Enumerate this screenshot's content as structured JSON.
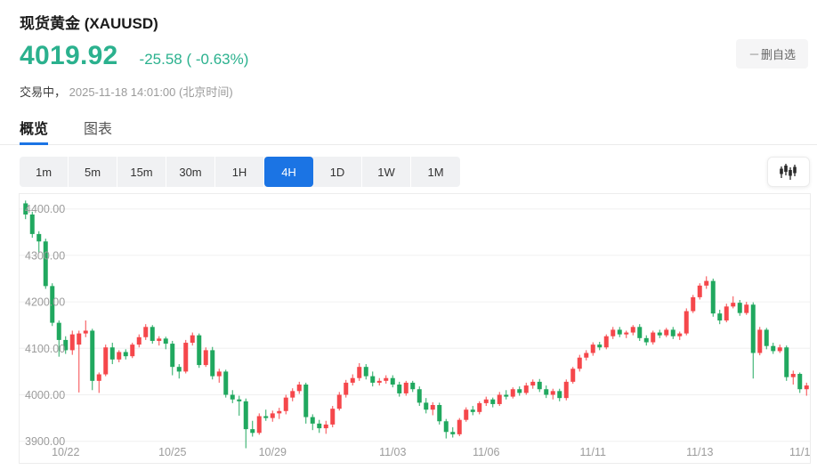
{
  "header": {
    "title": "现货黄金  (XAUUSD)",
    "price": "4019.92",
    "change": "-25.58 ( -0.63%)",
    "status_label": "交易中，",
    "timestamp": "2025-11-18 14:01:00",
    "timezone": "(北京时间)",
    "delete_button": {
      "icon": "－",
      "label": "删自选"
    },
    "price_color": "#2bb18e"
  },
  "tabs": [
    {
      "label": "概览",
      "active": true
    },
    {
      "label": "图表",
      "active": false
    }
  ],
  "toolbar": {
    "timeframes": [
      "1m",
      "5m",
      "15m",
      "30m",
      "1H",
      "4H",
      "1D",
      "1W",
      "1M"
    ],
    "active_timeframe": "4H",
    "chart_style_icon": "candlestick-icon",
    "active_color": "#1b74e4"
  },
  "chart_data": {
    "type": "candlestick",
    "symbol": "XAUUSD",
    "interval": "4H",
    "grid": true,
    "y_ticks": [
      {
        "label": "4400.00",
        "value": 4400
      },
      {
        "label": "4300.00",
        "value": 4300
      },
      {
        "label": "4200.00",
        "value": 4200
      },
      {
        "label": "4100.00",
        "value": 4100
      },
      {
        "label": "4000.00",
        "value": 4000
      },
      {
        "label": "3900.00",
        "value": 3900
      }
    ],
    "x_ticks": [
      {
        "label": "10/22",
        "index": 6
      },
      {
        "label": "10/25",
        "index": 22
      },
      {
        "label": "10/29",
        "index": 37
      },
      {
        "label": "11/03",
        "index": 55
      },
      {
        "label": "11/06",
        "index": 69
      },
      {
        "label": "11/11",
        "index": 85
      },
      {
        "label": "11/13",
        "index": 101
      },
      {
        "label": "11/1",
        "index": 116
      }
    ],
    "ylim": [
      3880,
      4432
    ],
    "colors": {
      "up": "#f5474b",
      "down": "#20a85f",
      "grid": "#f0f0f0",
      "axis_text": "#9c9c9c"
    },
    "candles_format": [
      "open",
      "high",
      "low",
      "close"
    ],
    "candles": [
      [
        4412,
        4418,
        4378,
        4388
      ],
      [
        4388,
        4394,
        4338,
        4346
      ],
      [
        4346,
        4352,
        4305,
        4330
      ],
      [
        4330,
        4336,
        4228,
        4234
      ],
      [
        4234,
        4240,
        4148,
        4155
      ],
      [
        4155,
        4160,
        4082,
        4118
      ],
      [
        4118,
        4126,
        4088,
        4096
      ],
      [
        4096,
        4138,
        4086,
        4130
      ],
      [
        4108,
        4138,
        4005,
        4132
      ],
      [
        4132,
        4160,
        4124,
        4138
      ],
      [
        4138,
        4142,
        4010,
        4030
      ],
      [
        4030,
        4048,
        4004,
        4044
      ],
      [
        4044,
        4108,
        4040,
        4102
      ],
      [
        4102,
        4112,
        4066,
        4076
      ],
      [
        4076,
        4096,
        4070,
        4092
      ],
      [
        4092,
        4098,
        4076,
        4083
      ],
      [
        4083,
        4112,
        4079,
        4108
      ],
      [
        4108,
        4130,
        4102,
        4124
      ],
      [
        4124,
        4152,
        4118,
        4146
      ],
      [
        4146,
        4150,
        4110,
        4116
      ],
      [
        4116,
        4126,
        4106,
        4121
      ],
      [
        4121,
        4125,
        4098,
        4110
      ],
      [
        4110,
        4116,
        4042,
        4060
      ],
      [
        4060,
        4066,
        4035,
        4050
      ],
      [
        4050,
        4118,
        4046,
        4112
      ],
      [
        4112,
        4134,
        4106,
        4128
      ],
      [
        4128,
        4132,
        4058,
        4064
      ],
      [
        4064,
        4102,
        4060,
        4096
      ],
      [
        4096,
        4103,
        4033,
        4040
      ],
      [
        4040,
        4056,
        4026,
        4050
      ],
      [
        4050,
        4054,
        3994,
        4000
      ],
      [
        4000,
        4010,
        3982,
        3990
      ],
      [
        3990,
        3998,
        3955,
        3986
      ],
      [
        3986,
        3992,
        3885,
        3926
      ],
      [
        3926,
        3944,
        3910,
        3918
      ],
      [
        3918,
        3960,
        3914,
        3954
      ],
      [
        3954,
        3968,
        3944,
        3950
      ],
      [
        3950,
        3966,
        3942,
        3960
      ],
      [
        3960,
        3972,
        3948,
        3965
      ],
      [
        3965,
        4000,
        3958,
        3994
      ],
      [
        3994,
        4014,
        3986,
        4008
      ],
      [
        4008,
        4028,
        4002,
        4022
      ],
      [
        4022,
        4026,
        3938,
        3952
      ],
      [
        3952,
        3958,
        3924,
        3938
      ],
      [
        3938,
        3946,
        3918,
        3928
      ],
      [
        3928,
        3944,
        3916,
        3936
      ],
      [
        3936,
        3976,
        3930,
        3970
      ],
      [
        3970,
        4006,
        3966,
        4000
      ],
      [
        4000,
        4032,
        3994,
        4026
      ],
      [
        4026,
        4044,
        4020,
        4036
      ],
      [
        4036,
        4068,
        4030,
        4060
      ],
      [
        4060,
        4066,
        4033,
        4040
      ],
      [
        4040,
        4050,
        4018,
        4026
      ],
      [
        4026,
        4036,
        4020,
        4030
      ],
      [
        4030,
        4042,
        4024,
        4036
      ],
      [
        4036,
        4042,
        4016,
        4022
      ],
      [
        4022,
        4028,
        3996,
        4003
      ],
      [
        4003,
        4030,
        3998,
        4026
      ],
      [
        4026,
        4030,
        4006,
        4012
      ],
      [
        4012,
        4018,
        3976,
        3983
      ],
      [
        3983,
        3993,
        3960,
        3968
      ],
      [
        3968,
        3984,
        3956,
        3978
      ],
      [
        3978,
        3983,
        3936,
        3943
      ],
      [
        3943,
        3948,
        3906,
        3920
      ],
      [
        3920,
        3930,
        3908,
        3915
      ],
      [
        3915,
        3950,
        3911,
        3946
      ],
      [
        3946,
        3973,
        3942,
        3968
      ],
      [
        3968,
        3976,
        3956,
        3963
      ],
      [
        3963,
        3986,
        3958,
        3982
      ],
      [
        3982,
        3996,
        3976,
        3990
      ],
      [
        3990,
        3994,
        3973,
        3980
      ],
      [
        3980,
        4006,
        3976,
        4000
      ],
      [
        4000,
        4010,
        3990,
        3996
      ],
      [
        3996,
        4016,
        3992,
        4012
      ],
      [
        4012,
        4018,
        3998,
        4004
      ],
      [
        4004,
        4026,
        4000,
        4020
      ],
      [
        4020,
        4033,
        4013,
        4028
      ],
      [
        4028,
        4034,
        4006,
        4012
      ],
      [
        4012,
        4020,
        3993,
        4000
      ],
      [
        4000,
        4013,
        3990,
        4008
      ],
      [
        4008,
        4013,
        3986,
        3993
      ],
      [
        3993,
        4033,
        3988,
        4028
      ],
      [
        4028,
        4060,
        4024,
        4056
      ],
      [
        4056,
        4086,
        4050,
        4080
      ],
      [
        4080,
        4096,
        4074,
        4090
      ],
      [
        4090,
        4113,
        4084,
        4108
      ],
      [
        4108,
        4114,
        4096,
        4102
      ],
      [
        4102,
        4130,
        4098,
        4126
      ],
      [
        4126,
        4146,
        4120,
        4140
      ],
      [
        4140,
        4146,
        4124,
        4130
      ],
      [
        4130,
        4138,
        4122,
        4134
      ],
      [
        4134,
        4150,
        4128,
        4146
      ],
      [
        4146,
        4152,
        4116,
        4122
      ],
      [
        4122,
        4128,
        4106,
        4113
      ],
      [
        4113,
        4138,
        4108,
        4134
      ],
      [
        4134,
        4140,
        4122,
        4128
      ],
      [
        4128,
        4144,
        4124,
        4140
      ],
      [
        4140,
        4146,
        4120,
        4126
      ],
      [
        4126,
        4136,
        4118,
        4132
      ],
      [
        4132,
        4186,
        4128,
        4180
      ],
      [
        4180,
        4215,
        4176,
        4210
      ],
      [
        4210,
        4240,
        4205,
        4235
      ],
      [
        4235,
        4255,
        4228,
        4245
      ],
      [
        4245,
        4250,
        4168,
        4175
      ],
      [
        4175,
        4183,
        4152,
        4160
      ],
      [
        4160,
        4196,
        4156,
        4190
      ],
      [
        4190,
        4212,
        4186,
        4198
      ],
      [
        4198,
        4204,
        4170,
        4176
      ],
      [
        4176,
        4200,
        4172,
        4194
      ],
      [
        4194,
        4199,
        4035,
        4090
      ],
      [
        4090,
        4146,
        4085,
        4140
      ],
      [
        4140,
        4144,
        4098,
        4105
      ],
      [
        4105,
        4112,
        4088,
        4094
      ],
      [
        4094,
        4108,
        4090,
        4102
      ],
      [
        4102,
        4106,
        4030,
        4038
      ],
      [
        4038,
        4052,
        4022,
        4045
      ],
      [
        4045,
        4048,
        4004,
        4012
      ],
      [
        4012,
        4026,
        3998,
        4020
      ]
    ]
  }
}
